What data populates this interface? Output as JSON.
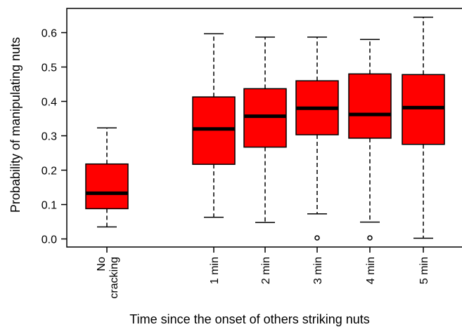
{
  "chart_data": {
    "type": "box",
    "title": "",
    "xlabel": "Time since the onset of others striking nuts",
    "ylabel": "Probability of manipulating nuts",
    "ylim": [
      -0.03,
      0.68
    ],
    "yticks": [
      0.0,
      0.1,
      0.2,
      0.3,
      0.4,
      0.5,
      0.6
    ],
    "ytick_labels": [
      "0.0",
      "0.1",
      "0.2",
      "0.3",
      "0.4",
      "0.5",
      "0.6"
    ],
    "box_color": "#ff0000",
    "categories": [
      {
        "label_lines": [
          "No",
          "cracking"
        ],
        "whisker_low": 0.035,
        "q1": 0.088,
        "median": 0.133,
        "q3": 0.218,
        "whisker_high": 0.323,
        "outliers": []
      },
      {
        "label_lines": [
          "1 min"
        ],
        "whisker_low": 0.063,
        "q1": 0.217,
        "median": 0.32,
        "q3": 0.413,
        "whisker_high": 0.597,
        "outliers": []
      },
      {
        "label_lines": [
          "2 min"
        ],
        "whisker_low": 0.048,
        "q1": 0.267,
        "median": 0.357,
        "q3": 0.437,
        "whisker_high": 0.587,
        "outliers": []
      },
      {
        "label_lines": [
          "3 min"
        ],
        "whisker_low": 0.073,
        "q1": 0.303,
        "median": 0.38,
        "q3": 0.46,
        "whisker_high": 0.587,
        "outliers": [
          0.003
        ]
      },
      {
        "label_lines": [
          "4 min"
        ],
        "whisker_low": 0.049,
        "q1": 0.293,
        "median": 0.362,
        "q3": 0.48,
        "whisker_high": 0.58,
        "outliers": [
          0.003
        ]
      },
      {
        "label_lines": [
          "5 min"
        ],
        "whisker_low": 0.002,
        "q1": 0.275,
        "median": 0.382,
        "q3": 0.478,
        "whisker_high": 0.645,
        "outliers": []
      }
    ]
  }
}
